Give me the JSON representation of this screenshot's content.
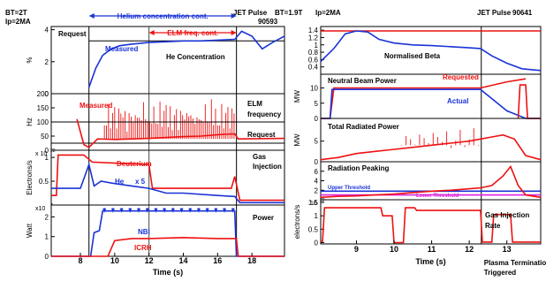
{
  "chart_data": [
    {
      "type": "line",
      "header": {
        "bt": "BT=2T",
        "ip": "Ip=2MA",
        "pulse_title": "JET Pulse",
        "pulse_number": "90593",
        "span1": "Helium concentration cont.",
        "span2": "ELM freq. cont."
      },
      "xlabel": "Time (s)",
      "xlim": [
        6.3,
        19.9
      ],
      "xticks": [
        8,
        10,
        12,
        14,
        16,
        18
      ],
      "vlines": [
        8.5,
        12.0,
        17.1
      ],
      "panels": [
        {
          "ylabel": "%",
          "ylim": [
            0,
            4.2
          ],
          "yticks": [
            0,
            2,
            4
          ],
          "annotations": [
            "Request",
            "Measured",
            "He Concentration"
          ],
          "series": [
            {
              "name": "Request",
              "color": "#000000",
              "style": "solid",
              "x": [
                8.5,
                19.9
              ],
              "y": [
                3.3,
                3.3
              ]
            },
            {
              "name": "Measured",
              "color": "#1a33d6",
              "x": [
                8.5,
                8.9,
                9.3,
                9.8,
                10.3,
                11.0,
                12.0,
                13.0,
                14.0,
                15.0,
                16.0,
                17.0,
                17.4,
                18.0,
                18.6,
                19.2,
                19.9
              ],
              "y": [
                0.4,
                1.6,
                2.4,
                2.8,
                3.0,
                3.1,
                3.2,
                3.25,
                3.3,
                3.3,
                3.35,
                3.4,
                3.9,
                3.6,
                2.8,
                3.2,
                3.6
              ]
            }
          ]
        },
        {
          "ylabel": "Hz",
          "ylim": [
            0,
            200
          ],
          "yticks": [
            0,
            50,
            100,
            150,
            200
          ],
          "annotations": [
            "Measured",
            "ELM",
            "frequency",
            "Request"
          ],
          "series": [
            {
              "name": "Request",
              "color": "#000000",
              "style": "solid",
              "x": [
                6.3,
                19.9
              ],
              "y": [
                25,
                25
              ]
            },
            {
              "name": "Request",
              "color": "#000000",
              "style": "solid",
              "x": [
                6.3,
                19.9
              ],
              "y": [
                100,
                100
              ]
            },
            {
              "name": "Measured",
              "color": "#ee1111",
              "x": [
                7.8,
                8.2,
                8.5,
                9.0,
                10.0,
                11.0,
                12.0,
                13.0,
                14.0,
                15.0,
                16.0,
                17.0,
                17.2,
                19.9
              ],
              "y": [
                110,
                20,
                10,
                40,
                38,
                40,
                42,
                45,
                48,
                50,
                55,
                58,
                40,
                42
              ]
            }
          ],
          "spikes": {
            "color": "#ee1111",
            "x_from": 9.4,
            "x_to": 17.0,
            "y_base": 40,
            "y_top": [
              160,
              120,
              180,
              130,
              170
            ]
          }
        },
        {
          "ylabel": "Electrons/s",
          "ylim": [
            0,
            1.15
          ],
          "yticks": [
            0.5,
            1.0
          ],
          "exponent_label": "x 10",
          "exponent": "22",
          "annotations": [
            "Deuterium",
            "He",
            "x 5",
            "Gas",
            "Injection"
          ],
          "series": [
            {
              "name": "Deuterium",
              "color": "#ee1111",
              "x": [
                6.3,
                6.6,
                6.7,
                8.2,
                8.7,
                8.8,
                12.0,
                12.2,
                16.8,
                17.0,
                17.3,
                19.9
              ],
              "y": [
                0.2,
                0.2,
                1.05,
                1.05,
                0.9,
                0.9,
                0.85,
                0.35,
                0.35,
                0.6,
                0.1,
                0.1
              ]
            },
            {
              "name": "He",
              "color": "#1a33d6",
              "x": [
                6.3,
                8.0,
                8.5,
                8.8,
                9.2,
                10.0,
                11.0,
                12.0,
                13.0,
                14.0,
                16.0,
                17.0,
                17.3,
                19.9
              ],
              "y": [
                0.35,
                0.35,
                0.85,
                0.4,
                0.5,
                0.45,
                0.4,
                0.35,
                0.25,
                0.25,
                0.2,
                0.18,
                0.05,
                0.05
              ]
            }
          ]
        },
        {
          "ylabel": "Watt",
          "ylim": [
            0,
            2.6
          ],
          "yticks": [
            0,
            1,
            2
          ],
          "exponent_label": "x10",
          "exponent": "7",
          "annotations": [
            "Power",
            "NBI",
            "ICRH"
          ],
          "series": [
            {
              "name": "NBI",
              "color": "#1a33d6",
              "x": [
                6.3,
                8.6,
                8.8,
                9.1,
                9.3,
                17.0,
                17.1,
                19.9
              ],
              "y": [
                0,
                0,
                1.2,
                1.3,
                2.3,
                2.3,
                0,
                0
              ]
            },
            {
              "name": "ICRH",
              "color": "#ee1111",
              "x": [
                6.3,
                9.6,
                10.0,
                11.0,
                12.0,
                14.0,
                16.0,
                17.1,
                17.2,
                19.9
              ],
              "y": [
                0,
                0,
                0.8,
                0.9,
                0.9,
                0.95,
                0.9,
                0.9,
                0,
                0
              ]
            }
          ],
          "arrow_markers": {
            "color": "#1a33d6",
            "x": [
              9.4,
              9.9,
              10.4,
              10.9,
              11.4,
              11.9,
              12.4,
              12.9,
              13.4,
              13.9,
              14.4,
              14.9,
              15.4,
              15.9,
              16.4,
              16.9
            ],
            "y": 2.25
          }
        }
      ]
    },
    {
      "type": "line",
      "header": {
        "bt": "BT=1.9T",
        "ip": "Ip=2MA",
        "pulse_title": "JET Pulse",
        "pulse_number": "90641"
      },
      "xlabel": "Time (s)",
      "xlim": [
        8.05,
        13.9
      ],
      "xticks": [
        9,
        10,
        11,
        12,
        13
      ],
      "vlines": [
        12.32
      ],
      "vline_label": [
        "Plasma Termination",
        "Triggered"
      ],
      "panels": [
        {
          "ylabel": "",
          "ylim": [
            0.2,
            1.5
          ],
          "yticks": [
            0.4,
            0.6,
            0.8,
            1.0,
            1.2,
            1.4
          ],
          "annotations": [
            "Normalised Beta"
          ],
          "series": [
            {
              "name": "Request",
              "color": "#ee1111",
              "x": [
                8.05,
                13.9
              ],
              "y": [
                1.38,
                1.38
              ]
            },
            {
              "name": "Normalised Beta",
              "color": "#1a33d6",
              "x": [
                8.05,
                8.4,
                8.7,
                9.0,
                9.3,
                9.6,
                10.0,
                10.5,
                11.0,
                11.5,
                12.0,
                12.3,
                12.6,
                13.0,
                13.4,
                13.9
              ],
              "y": [
                0.55,
                0.9,
                1.3,
                1.38,
                1.35,
                1.15,
                1.05,
                1.0,
                0.98,
                0.95,
                0.92,
                0.9,
                0.7,
                0.5,
                0.35,
                0.3
              ]
            }
          ]
        },
        {
          "ylabel": "MW",
          "ylim": [
            0,
            14.5
          ],
          "yticks": [
            0,
            5,
            10
          ],
          "annotations": [
            "Neutral Beam Power",
            "Requested",
            "Actual"
          ],
          "series": [
            {
              "name": "Requested",
              "color": "#ee1111",
              "x": [
                8.05,
                8.3,
                8.4,
                12.3,
                13.0,
                13.5
              ],
              "y": [
                0,
                0,
                10,
                10,
                12,
                13
              ]
            },
            {
              "name": "Actual",
              "color": "#1a33d6",
              "x": [
                8.05,
                8.3,
                8.35,
                12.3,
                12.4,
                12.5,
                12.6,
                12.7,
                12.8,
                12.9,
                13.0,
                13.2,
                13.5,
                13.9
              ],
              "y": [
                0,
                0,
                9.5,
                9.5,
                8.5,
                7.5,
                6.5,
                5.5,
                4.5,
                3.5,
                2.5,
                1.5,
                0,
                0
              ]
            },
            {
              "name": "Requested",
              "color": "#ee1111",
              "x": [
                13.3,
                13.35,
                13.5,
                13.55,
                13.9
              ],
              "y": [
                0,
                11,
                11,
                0,
                0
              ]
            }
          ]
        },
        {
          "ylabel": "MW",
          "ylim": [
            0,
            10.5
          ],
          "yticks": [
            0,
            5
          ],
          "annotations": [
            "Total Radiated Power"
          ],
          "series": [
            {
              "name": "Total Radiated Power",
              "color": "#ee1111",
              "x": [
                8.05,
                8.5,
                9.0,
                9.5,
                10.0,
                10.5,
                11.0,
                11.5,
                12.0,
                12.3,
                12.6,
                12.9,
                13.2,
                13.5,
                13.9
              ],
              "y": [
                0.5,
                1.0,
                2.0,
                2.5,
                3.0,
                3.5,
                4.0,
                4.5,
                5.0,
                5.5,
                6.0,
                6.5,
                5.5,
                1.5,
                0.5
              ]
            }
          ],
          "spikes": {
            "color": "#ee1111",
            "x_from": 10.2,
            "x_to": 12.3,
            "y_base": 4.0,
            "y_top": [
              7.0,
              8.5,
              6.0
            ]
          }
        },
        {
          "ylabel": "",
          "ylim": [
            0,
            8
          ],
          "yticks": [
            2,
            4,
            6
          ],
          "annotations": [
            "Radiation Peaking",
            "Upper Threshold",
            "Lower Threshold"
          ],
          "series": [
            {
              "name": "Upper Threshold",
              "color": "#1a33d6",
              "x": [
                8.05,
                13.9
              ],
              "y": [
                1.8,
                1.8
              ]
            },
            {
              "name": "Lower Threshold",
              "color": "#dd22dd",
              "x": [
                8.05,
                13.9
              ],
              "y": [
                1.0,
                1.0
              ]
            },
            {
              "name": "Radiation Peaking",
              "color": "#ee1111",
              "x": [
                8.05,
                8.5,
                9.0,
                9.5,
                10.0,
                10.5,
                11.0,
                11.5,
                12.0,
                12.3,
                12.6,
                12.9,
                13.1,
                13.3,
                13.5,
                13.9
              ],
              "y": [
                0.5,
                0.7,
                0.8,
                1.0,
                1.2,
                1.5,
                1.8,
                2.0,
                2.3,
                2.5,
                3.0,
                5.0,
                7.0,
                3.0,
                1.0,
                0.5
              ]
            }
          ]
        },
        {
          "ylabel": "electrons/s",
          "ylim": [
            -0.05,
            1.6
          ],
          "yticks": [
            0.0,
            0.5,
            1.0,
            1.5
          ],
          "exponent_label": "10",
          "exponent": "22",
          "annotations": [
            "Gas Injection",
            "Rate"
          ],
          "series": [
            {
              "name": "Gas Injection Rate",
              "color": "#ee1111",
              "x": [
                8.05,
                8.1,
                8.15,
                9.65,
                9.7,
                9.95,
                10.0,
                10.25,
                10.3,
                10.55,
                10.6,
                12.3,
                12.35,
                12.6,
                12.65,
                13.1,
                13.15,
                13.9
              ],
              "y": [
                0.05,
                0.05,
                1.3,
                1.3,
                1.0,
                1.0,
                0.0,
                0.0,
                1.3,
                1.3,
                1.2,
                1.2,
                0.02,
                0.02,
                1.05,
                1.05,
                0.02,
                0.02
              ]
            }
          ]
        }
      ]
    }
  ]
}
